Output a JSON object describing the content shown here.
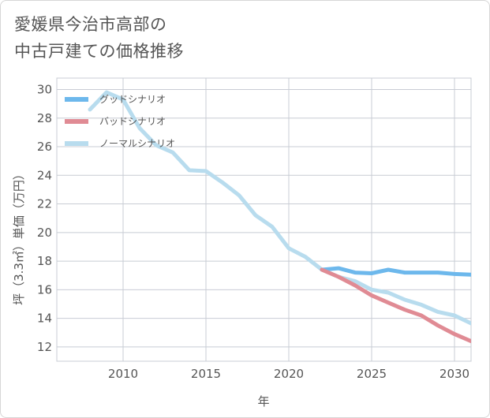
{
  "title_lines": [
    "愛媛県今治市高部の",
    "中古戸建ての価格推移"
  ],
  "chart_data": {
    "type": "line",
    "title": "愛媛県今治市高部の中古戸建ての価格推移",
    "xlabel": "年",
    "ylabel": "坪（3.3㎡）単価（万円）",
    "xlim": [
      2006,
      2031
    ],
    "ylim": [
      11,
      30.8
    ],
    "xticks": [
      2010,
      2015,
      2020,
      2025,
      2030
    ],
    "yticks": [
      12,
      14,
      16,
      18,
      20,
      22,
      24,
      26,
      28,
      30
    ],
    "legend_position": "top-left",
    "series": [
      {
        "name": "グッドシナリオ",
        "color": "#6db8ec",
        "x": [
          2022,
          2023,
          2024,
          2025,
          2026,
          2027,
          2028,
          2029,
          2030,
          2031
        ],
        "y": [
          17.4,
          17.5,
          17.2,
          17.15,
          17.4,
          17.2,
          17.2,
          17.2,
          17.1,
          17.05
        ]
      },
      {
        "name": "バッドシナリオ",
        "color": "#e08b94",
        "x": [
          2022,
          2023,
          2024,
          2025,
          2026,
          2027,
          2028,
          2029,
          2030,
          2031
        ],
        "y": [
          17.4,
          16.9,
          16.3,
          15.6,
          15.1,
          14.6,
          14.2,
          13.5,
          12.9,
          12.4
        ]
      },
      {
        "name": "ノーマルシナリオ",
        "color": "#b8dcee",
        "x": [
          2008,
          2009,
          2010,
          2011,
          2012,
          2013,
          2014,
          2015,
          2016,
          2017,
          2018,
          2019,
          2020,
          2021,
          2022,
          2023,
          2024,
          2025,
          2026,
          2027,
          2028,
          2029,
          2030,
          2031
        ],
        "y": [
          28.6,
          29.8,
          29.3,
          27.3,
          26.1,
          25.6,
          24.35,
          24.3,
          23.5,
          22.6,
          21.2,
          20.4,
          18.9,
          18.3,
          17.4,
          16.9,
          16.6,
          16.0,
          15.8,
          15.3,
          14.95,
          14.45,
          14.2,
          13.65
        ]
      }
    ]
  }
}
